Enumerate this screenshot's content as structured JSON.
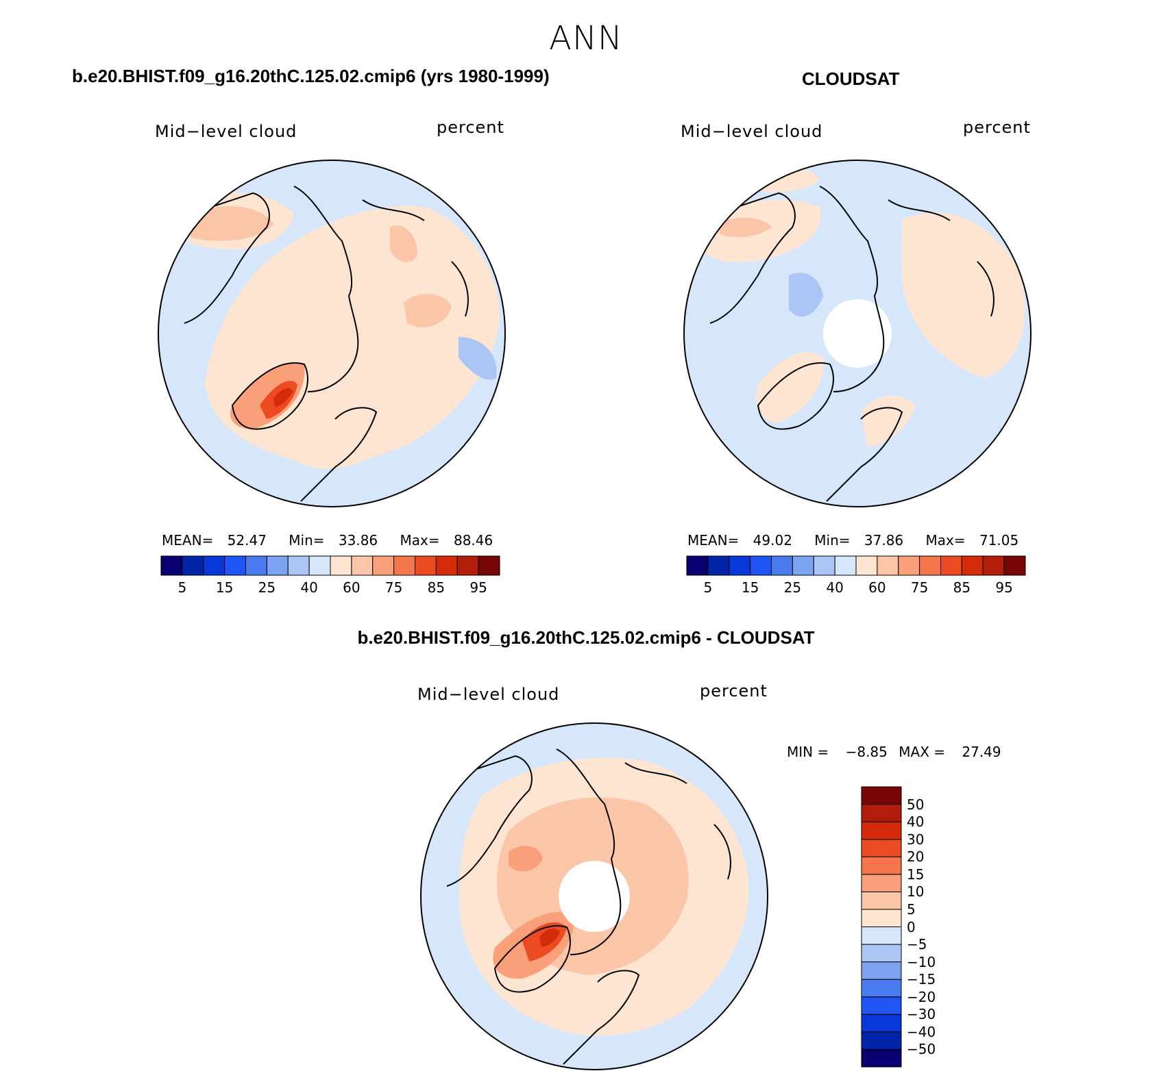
{
  "header": {
    "title": "ANN"
  },
  "panels": {
    "model": {
      "title": "b.e20.BHIST.f09_g16.20thC.125.02.cmip6 (yrs 1980-1999)",
      "left_label": "Mid−level cloud",
      "right_label": "percent",
      "stats": {
        "mean_label": "MEAN=",
        "mean": "52.47",
        "min_label": "Min=",
        "min": "33.86",
        "max_label": "Max=",
        "max": "88.46"
      }
    },
    "obs": {
      "title": "CLOUDSAT",
      "left_label": "Mid−level cloud",
      "right_label": "percent",
      "stats": {
        "mean_label": "MEAN=",
        "mean": "49.02",
        "min_label": "Min=",
        "min": "37.86",
        "max_label": "Max=",
        "max": "71.05"
      }
    },
    "diff": {
      "title": "b.e20.BHIST.f09_g16.20thC.125.02.cmip6 - CLOUDSAT",
      "left_label": "Mid−level cloud",
      "right_label": "percent",
      "stats": {
        "min_label": "MIN =",
        "min": "−8.85",
        "max_label": "MAX =",
        "max": "27.49"
      }
    }
  },
  "colorbars": {
    "absolute": {
      "colors": [
        "#08006e",
        "#0025a8",
        "#0838d8",
        "#1f55f2",
        "#4a7cf0",
        "#7ca3f2",
        "#abc6f5",
        "#d6e6fb",
        "#fde5d2",
        "#fbc6a8",
        "#f9a07a",
        "#f5764b",
        "#ec4b22",
        "#d42b0a",
        "#b01d08",
        "#780606"
      ],
      "labels": [
        "5",
        "15",
        "25",
        "40",
        "60",
        "75",
        "85",
        "95"
      ]
    },
    "difference": {
      "colors": [
        "#08006e",
        "#0025a8",
        "#0838d8",
        "#1f55f2",
        "#4a7cf0",
        "#7ca3f2",
        "#abc6f5",
        "#d6e6fb",
        "#fde5d2",
        "#fbc6a8",
        "#f9a07a",
        "#f5764b",
        "#ec4b22",
        "#d42b0a",
        "#b01d08",
        "#780606"
      ],
      "labels": [
        "−50",
        "−40",
        "−30",
        "−20",
        "−15",
        "−10",
        "−5",
        "0",
        "5",
        "10",
        "15",
        "20",
        "30",
        "40",
        "50"
      ]
    }
  },
  "map_colors": {
    "light_blue": "#d6e6fb",
    "mid_blue": "#abc6f5",
    "light_orange": "#fde5d2",
    "orange": "#fbc6a8",
    "strong_orange": "#f9a07a",
    "red": "#ec4b22",
    "dark_red": "#d42b0a"
  }
}
